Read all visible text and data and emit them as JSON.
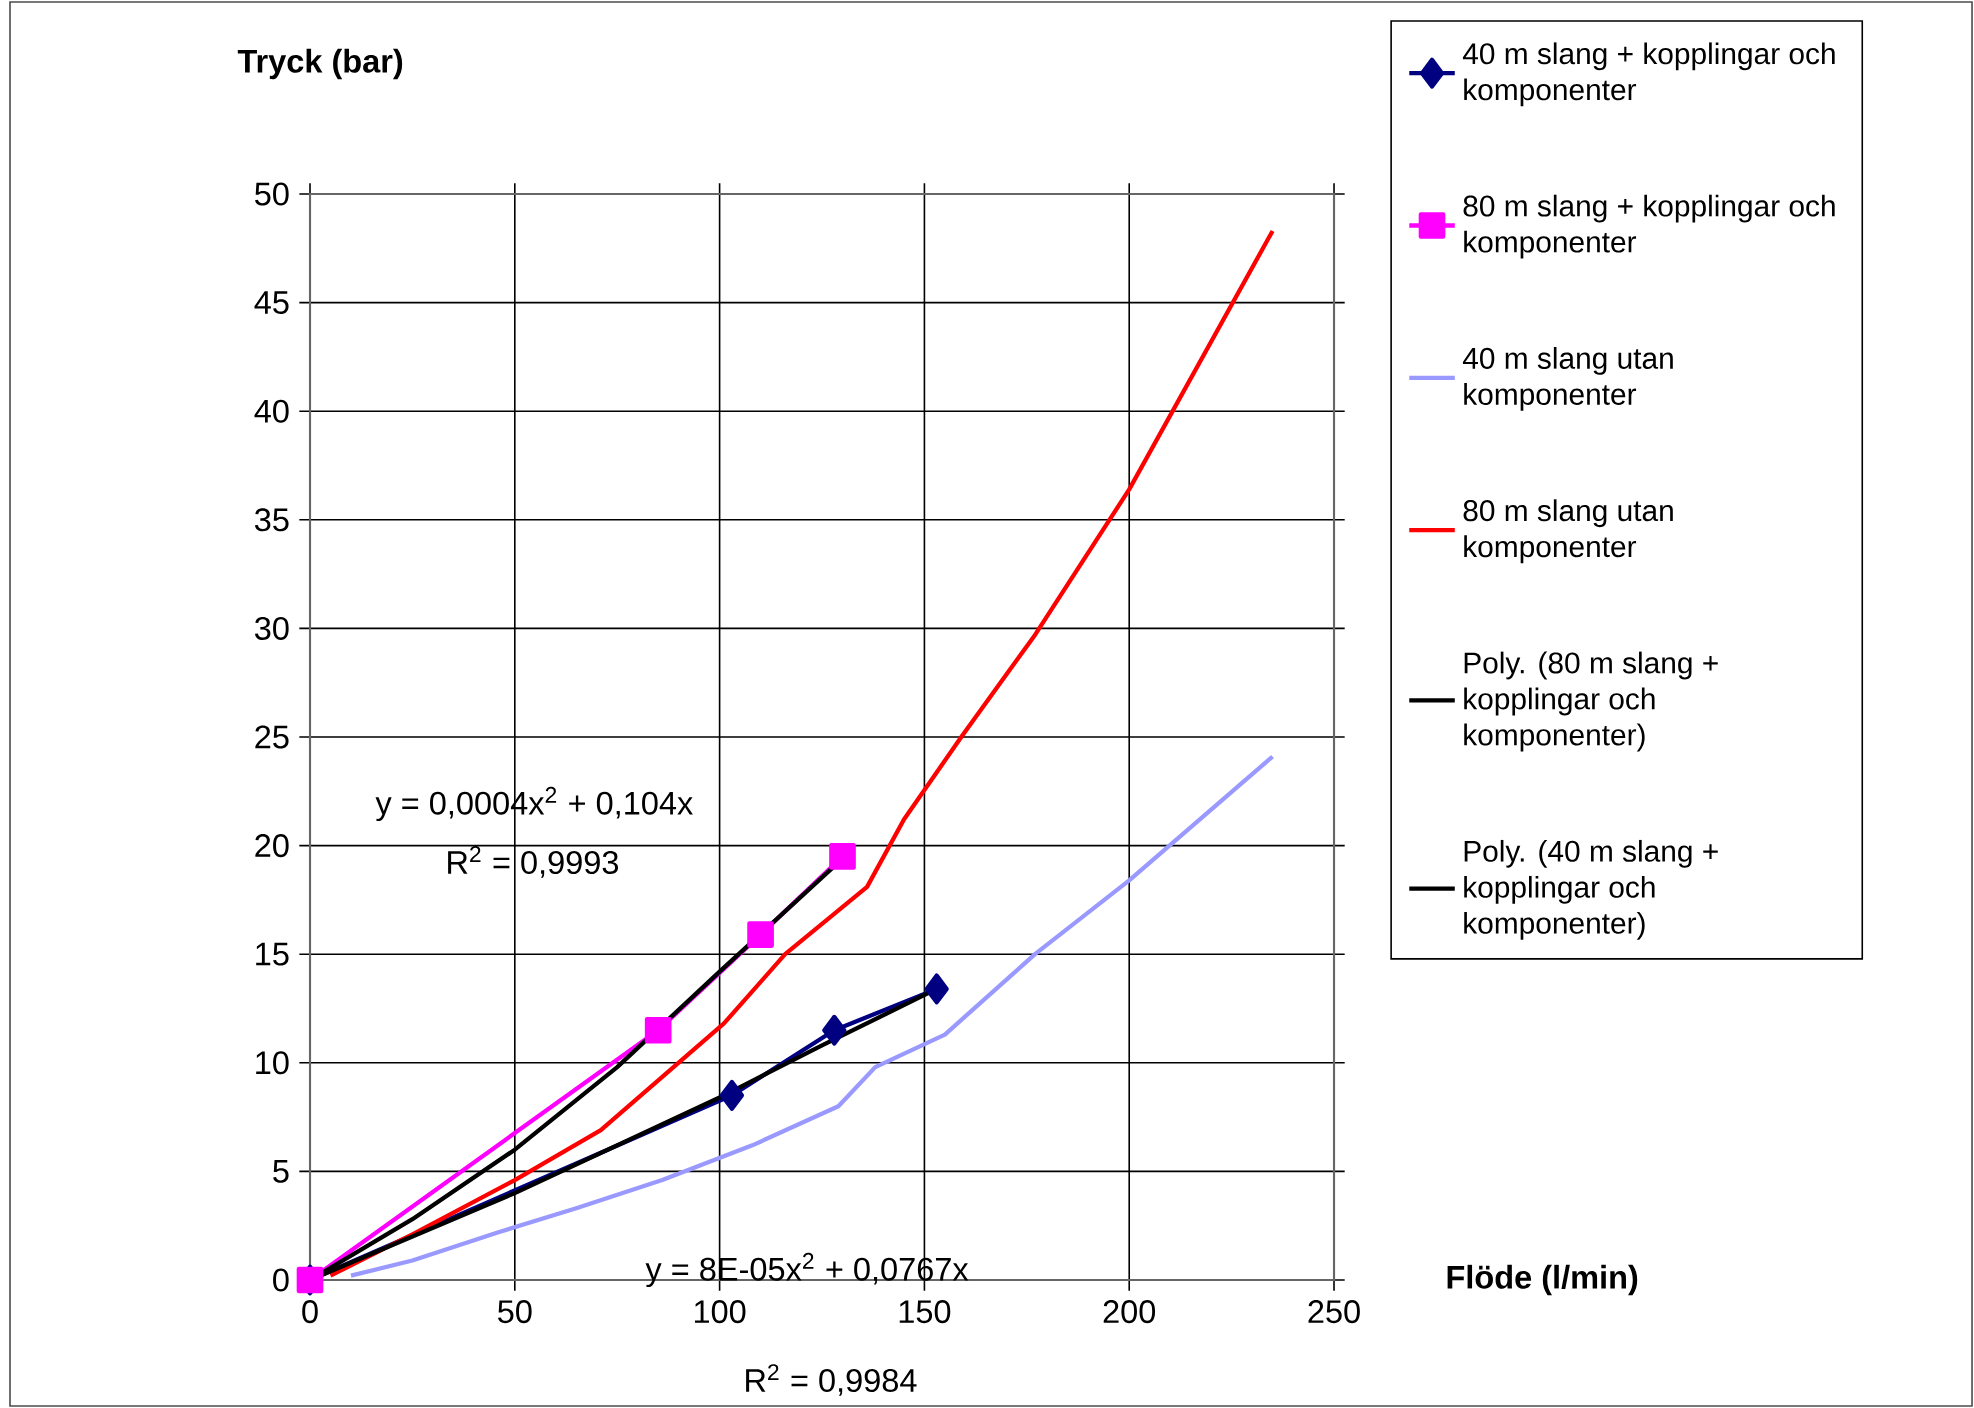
{
  "chart_data": {
    "type": "line",
    "xlabel": "Flöde (l/min)",
    "ylabel": "Tryck (bar)",
    "xlim": [
      0,
      250
    ],
    "ylim": [
      0,
      50
    ],
    "xticks": [
      0,
      50,
      100,
      150,
      200,
      250
    ],
    "yticks": [
      0,
      5,
      10,
      15,
      20,
      25,
      30,
      35,
      40,
      45,
      50
    ],
    "grid": true,
    "legend": "right",
    "series": [
      {
        "name": "40 m slang + kopplingar och komponenter",
        "color": "#000080",
        "marker": "diamond",
        "x": [
          0,
          103,
          128,
          153
        ],
        "values": [
          0,
          8.5,
          11.5,
          13.4
        ]
      },
      {
        "name": "80 m slang + kopplingar och komponenter",
        "color": "#ff00ff",
        "marker": "square",
        "x": [
          0,
          85,
          110,
          130
        ],
        "values": [
          0,
          11.5,
          15.9,
          19.5
        ]
      },
      {
        "name": "40 m slang utan komponenter",
        "color": "#9999ff",
        "x": [
          10,
          25,
          46,
          65,
          86,
          108,
          129,
          138,
          155,
          177,
          200,
          235
        ],
        "values": [
          0.2,
          0.9,
          2.2,
          3.3,
          4.6,
          6.2,
          8.0,
          9.8,
          11.3,
          15.0,
          18.4,
          24.1
        ]
      },
      {
        "name": "80 m slang utan komponenter",
        "color": "#ff0000",
        "x": [
          5,
          25,
          50,
          71,
          101,
          116,
          136,
          145,
          159,
          177,
          200,
          235
        ],
        "values": [
          0.2,
          2.1,
          4.6,
          6.9,
          11.8,
          15.0,
          18.1,
          21.2,
          25.0,
          29.7,
          36.4,
          48.3
        ]
      },
      {
        "name": "Poly. (80 m slang + kopplingar och komponenter)",
        "color": "#000000",
        "x": [
          0,
          25,
          50,
          75,
          100,
          130
        ],
        "values": [
          0,
          2.8,
          6.0,
          9.8,
          14.2,
          19.4
        ]
      },
      {
        "name": "Poly. (40 m slang + kopplingar och komponenter)",
        "color": "#000000",
        "x": [
          0,
          25,
          50,
          75,
          100,
          125,
          153
        ],
        "values": [
          0,
          2.0,
          4.0,
          6.2,
          8.4,
          10.8,
          13.4
        ]
      }
    ],
    "annotations": [
      "y = 0,0004x$^{2}$ + 0,104x",
      "R$^{2}$ = 0,9993",
      "y = 8E-05x$^{2}$ + 0,0767x",
      "R$^{2}$ = 0,9984"
    ]
  }
}
